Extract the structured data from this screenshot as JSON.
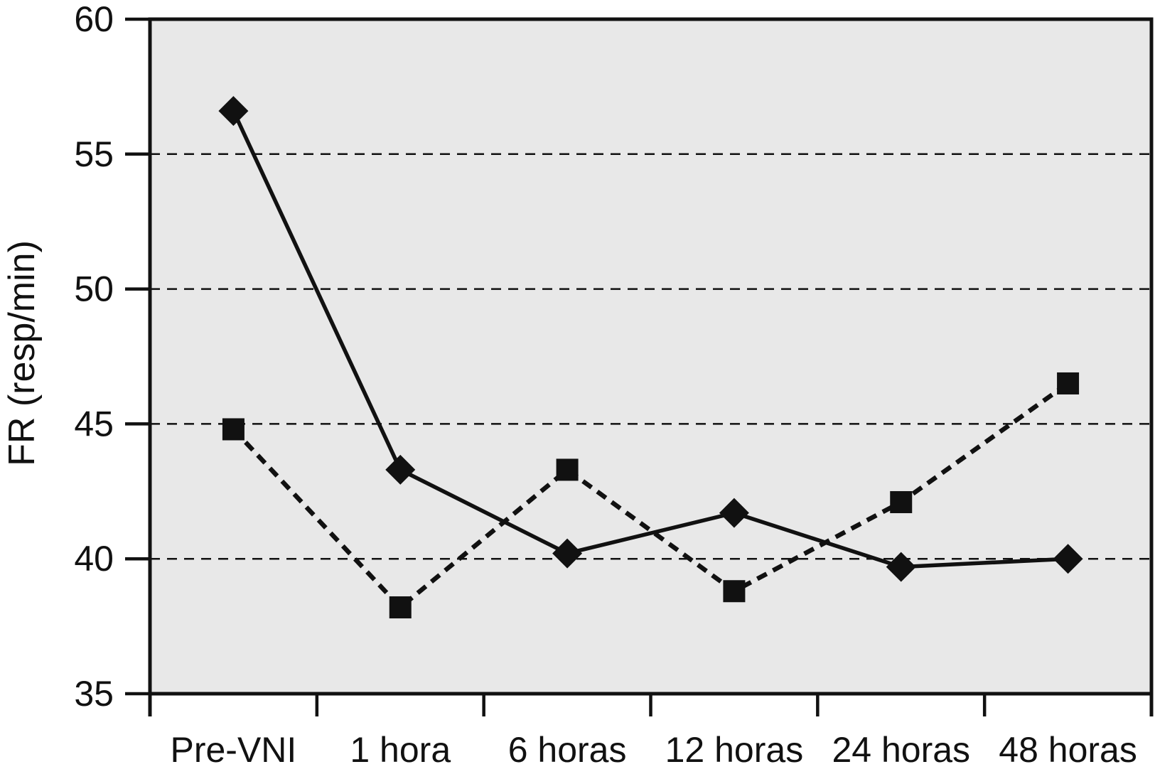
{
  "chart_data": {
    "type": "line",
    "title": "",
    "xlabel": "",
    "ylabel": "FR (resp/min)",
    "categories": [
      "Pre-VNI",
      "1 hora",
      "6 horas",
      "12 horas",
      "24 horas",
      "48 horas"
    ],
    "series": [
      {
        "name": "diamond-solid",
        "marker": "diamond",
        "line_style": "solid",
        "values": [
          56.6,
          43.3,
          40.2,
          41.7,
          39.7,
          40.0
        ]
      },
      {
        "name": "square-dashed",
        "marker": "square",
        "line_style": "dashed",
        "values": [
          44.8,
          38.2,
          43.3,
          38.8,
          42.1,
          46.5
        ]
      }
    ],
    "ylim": [
      35,
      60
    ],
    "y_ticks": [
      35,
      40,
      45,
      50,
      55,
      60
    ],
    "grid": "horizontal dashed gridlines at 40, 45, 50, 55",
    "legend": "none",
    "colors": {
      "plot_background": "#e8e8e8",
      "line": "#111111",
      "text": "#111111"
    }
  }
}
